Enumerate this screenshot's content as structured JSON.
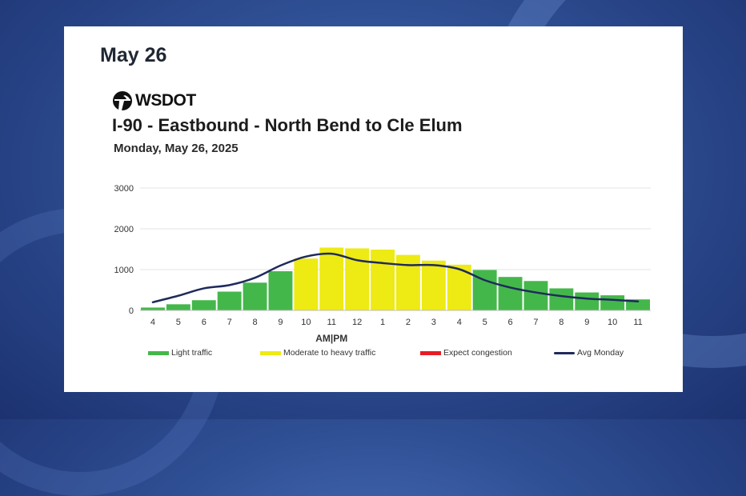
{
  "slide": {
    "title": "May 26"
  },
  "logo": {
    "text": "WSDOT"
  },
  "colors": {
    "light": "#44b74a",
    "moderate": "#eeea13",
    "congestion": "#e81c24",
    "avg_line": "#1f2a5c",
    "grid": "#e3e3e3"
  },
  "chart_data": {
    "type": "bar",
    "title": "I-90 - Eastbound - North Bend to Cle Elum",
    "subtitle": "Monday, May 26, 2025",
    "xlabel": "AM|PM",
    "ylabel": "",
    "ylim": [
      0,
      3000
    ],
    "yticks": [
      "0",
      "1000",
      "2000",
      "3000"
    ],
    "grid": true,
    "legend_position": "bottom",
    "categories": [
      "4",
      "5",
      "6",
      "7",
      "8",
      "9",
      "10",
      "11",
      "12",
      "1",
      "2",
      "3",
      "4",
      "5",
      "6",
      "7",
      "8",
      "9",
      "10",
      "11"
    ],
    "values": [
      70,
      150,
      250,
      460,
      680,
      960,
      1270,
      1540,
      1520,
      1490,
      1360,
      1220,
      1120,
      990,
      820,
      720,
      540,
      440,
      370,
      270
    ],
    "traffic_level": [
      "light",
      "light",
      "light",
      "light",
      "light",
      "light",
      "moderate",
      "moderate",
      "moderate",
      "moderate",
      "moderate",
      "moderate",
      "moderate",
      "light",
      "light",
      "light",
      "light",
      "light",
      "light",
      "light"
    ],
    "avg_line": {
      "name": "Avg Monday",
      "values": [
        200,
        360,
        540,
        620,
        800,
        1100,
        1320,
        1390,
        1230,
        1160,
        1110,
        1110,
        1010,
        740,
        560,
        440,
        350,
        290,
        260,
        220
      ]
    },
    "legend": [
      {
        "key": "light",
        "label": "Light traffic"
      },
      {
        "key": "moderate",
        "label": "Moderate to heavy traffic"
      },
      {
        "key": "congestion",
        "label": "Expect congestion"
      },
      {
        "key": "avg",
        "label": "Avg Monday"
      }
    ]
  }
}
